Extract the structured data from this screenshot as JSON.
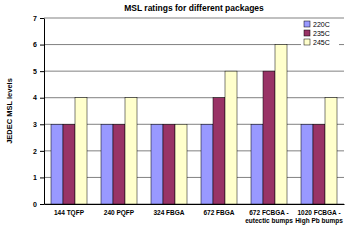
{
  "chart_data": {
    "type": "bar",
    "title": "MSL ratings for different packages",
    "y_label": "JEDEC MSL levels",
    "categories": [
      "144 TQFP",
      "240 PQFP",
      "324 FBGA",
      "672 FBGA",
      "672 FCBGA - eutectic bumps",
      "1020 FCBGA - High Pb bumps"
    ],
    "series": [
      {
        "name": "220C",
        "color": "#9999ff",
        "values": [
          3,
          3,
          3,
          3,
          3,
          3
        ]
      },
      {
        "name": "235C",
        "color": "#993366",
        "values": [
          3,
          3,
          3,
          4,
          5,
          3
        ]
      },
      {
        "name": "245C",
        "color": "#ffffcc",
        "values": [
          4,
          4,
          3,
          5,
          6,
          4
        ]
      }
    ],
    "ylim": [
      0,
      7
    ],
    "yticks": [
      0,
      1,
      2,
      3,
      4,
      5,
      6,
      7
    ],
    "grid": true,
    "legend": "top-right"
  }
}
